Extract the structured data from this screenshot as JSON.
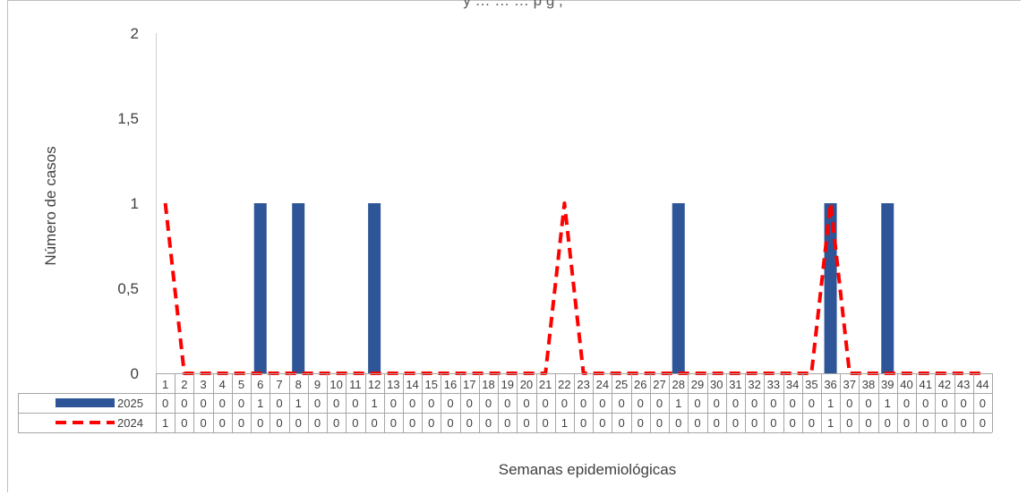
{
  "chart_data": {
    "type": "bar",
    "title": "y … … …           p           g             ,",
    "xlabel": "Semanas epidemiológicas",
    "ylabel": "Número de casos",
    "ylim": [
      0,
      2
    ],
    "yticks": [
      "0",
      "0,5",
      "1",
      "1,5",
      "2"
    ],
    "categories": [
      "1",
      "2",
      "3",
      "4",
      "5",
      "6",
      "7",
      "8",
      "9",
      "10",
      "11",
      "12",
      "13",
      "14",
      "15",
      "16",
      "17",
      "18",
      "19",
      "20",
      "21",
      "22",
      "23",
      "24",
      "25",
      "26",
      "27",
      "28",
      "29",
      "30",
      "31",
      "32",
      "33",
      "34",
      "35",
      "36",
      "37",
      "38",
      "39",
      "40",
      "41",
      "42",
      "43",
      "44"
    ],
    "series": [
      {
        "name": "2025",
        "type": "bar",
        "color": "#2E5597",
        "values": [
          0,
          0,
          0,
          0,
          0,
          1,
          0,
          1,
          0,
          0,
          0,
          1,
          0,
          0,
          0,
          0,
          0,
          0,
          0,
          0,
          0,
          0,
          0,
          0,
          0,
          0,
          0,
          1,
          0,
          0,
          0,
          0,
          0,
          0,
          0,
          1,
          0,
          0,
          1,
          0,
          0,
          0,
          0,
          0
        ]
      },
      {
        "name": "2024",
        "type": "line",
        "style": "dashed",
        "color": "#FF0000",
        "values": [
          1,
          0,
          0,
          0,
          0,
          0,
          0,
          0,
          0,
          0,
          0,
          0,
          0,
          0,
          0,
          0,
          0,
          0,
          0,
          0,
          0,
          1,
          0,
          0,
          0,
          0,
          0,
          0,
          0,
          0,
          0,
          0,
          0,
          0,
          0,
          1,
          0,
          0,
          0,
          0,
          0,
          0,
          0,
          0
        ]
      }
    ],
    "data_table": true,
    "grid": false
  }
}
